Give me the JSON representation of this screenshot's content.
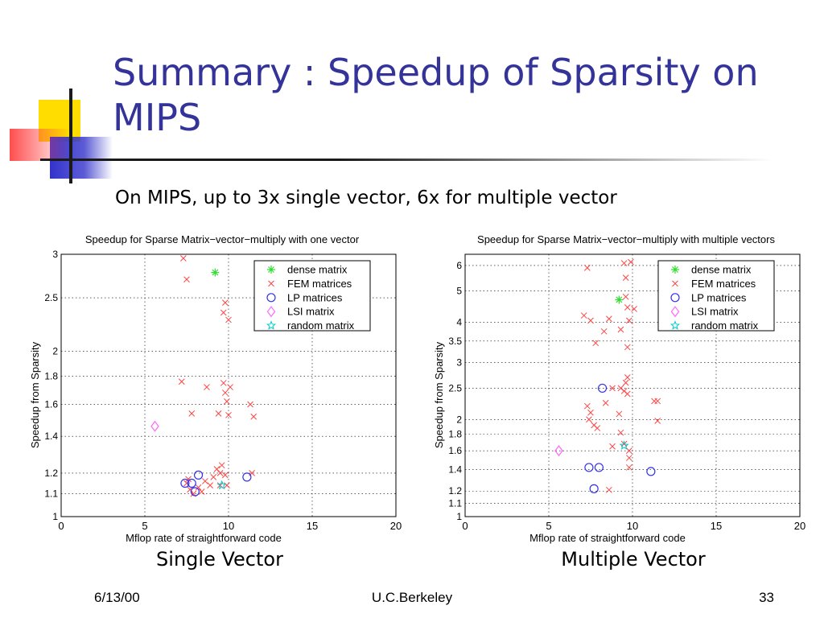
{
  "slide": {
    "title": "Summary : Speedup of Sparsity on MIPS",
    "subtitle": "On MIPS, up to 3x single vector, 6x for multiple vector",
    "captions": [
      "Single Vector",
      "Multiple Vector"
    ],
    "footer": {
      "date": "6/13/00",
      "org": "U.C.Berkeley",
      "page": "33"
    }
  },
  "colors": {
    "title": "#333399",
    "dense": "#33dd33",
    "fem": "#ff4444",
    "lp": "#3333ee",
    "lsi": "#ff66ff",
    "random": "#00cccc"
  },
  "chart_data": [
    {
      "type": "scatter",
      "title": "Speedup for Sparse Matrix−vector−multiply with one vector",
      "xlabel": "Mflop rate of straightforward code",
      "ylabel": "Speedup from Sparsity",
      "xlim": [
        0,
        20
      ],
      "ylim": [
        1,
        3
      ],
      "yscale": "log",
      "xticks": [
        0,
        5,
        10,
        15,
        20
      ],
      "yticks": [
        1,
        1.1,
        1.2,
        1.4,
        1.6,
        1.8,
        2,
        2.5,
        3
      ],
      "grid": true,
      "legend_position": "top-right",
      "series": [
        {
          "name": "dense matrix",
          "marker": "star",
          "points": [
            [
              9.2,
              2.78
            ]
          ]
        },
        {
          "name": "FEM matrices",
          "marker": "x",
          "points": [
            [
              7.3,
              2.95
            ],
            [
              7.5,
              2.7
            ],
            [
              9.8,
              2.45
            ],
            [
              9.7,
              2.35
            ],
            [
              10.0,
              2.28
            ],
            [
              7.2,
              1.76
            ],
            [
              8.7,
              1.72
            ],
            [
              9.7,
              1.75
            ],
            [
              9.8,
              1.68
            ],
            [
              10.1,
              1.72
            ],
            [
              9.9,
              1.62
            ],
            [
              11.3,
              1.6
            ],
            [
              11.5,
              1.52
            ],
            [
              7.8,
              1.54
            ],
            [
              9.4,
              1.54
            ],
            [
              10.0,
              1.53
            ],
            [
              9.3,
              1.22
            ],
            [
              9.6,
              1.24
            ],
            [
              9.5,
              1.2
            ],
            [
              9.8,
              1.19
            ],
            [
              11.4,
              1.2
            ],
            [
              7.5,
              1.15
            ],
            [
              8.2,
              1.13
            ],
            [
              8.6,
              1.16
            ],
            [
              8.9,
              1.14
            ],
            [
              9.5,
              1.14
            ],
            [
              9.9,
              1.14
            ],
            [
              7.7,
              1.12
            ],
            [
              8.4,
              1.11
            ],
            [
              7.9,
              1.1
            ],
            [
              7.6,
              1.17
            ],
            [
              9.1,
              1.18
            ]
          ]
        },
        {
          "name": "LP matrices",
          "marker": "circle",
          "points": [
            [
              7.4,
              1.15
            ],
            [
              7.8,
              1.15
            ],
            [
              8.2,
              1.19
            ],
            [
              8.0,
              1.11
            ],
            [
              11.1,
              1.18
            ]
          ]
        },
        {
          "name": "LSI matrix",
          "marker": "diamond",
          "points": [
            [
              5.6,
              1.46
            ]
          ]
        },
        {
          "name": "random matrix",
          "marker": "pentagram",
          "points": [
            [
              9.6,
              1.14
            ]
          ]
        }
      ]
    },
    {
      "type": "scatter",
      "title": "Speedup for Sparse Matrix−vector−multiply with multiple vectors",
      "xlabel": "Mflop rate of straightforward code",
      "ylabel": "Speedup from Sparsity",
      "xlim": [
        0,
        20
      ],
      "ylim": [
        1,
        6.5
      ],
      "yscale": "log",
      "xticks": [
        0,
        5,
        10,
        15,
        20
      ],
      "yticks": [
        1,
        1.1,
        1.2,
        1.4,
        1.6,
        1.8,
        2,
        2.5,
        3,
        3.5,
        4,
        5,
        6
      ],
      "grid": true,
      "legend_position": "top-right",
      "series": [
        {
          "name": "dense matrix",
          "marker": "star",
          "points": [
            [
              9.2,
              4.7
            ]
          ]
        },
        {
          "name": "FEM matrices",
          "marker": "x",
          "points": [
            [
              7.3,
              5.9
            ],
            [
              9.5,
              6.1
            ],
            [
              9.9,
              6.15
            ],
            [
              9.6,
              5.5
            ],
            [
              9.6,
              4.8
            ],
            [
              9.7,
              4.45
            ],
            [
              10.1,
              4.4
            ],
            [
              7.1,
              4.2
            ],
            [
              7.5,
              4.05
            ],
            [
              8.6,
              4.1
            ],
            [
              8.3,
              3.75
            ],
            [
              9.3,
              3.8
            ],
            [
              9.8,
              4.05
            ],
            [
              7.8,
              3.45
            ],
            [
              9.7,
              3.35
            ],
            [
              9.7,
              2.7
            ],
            [
              9.6,
              2.6
            ],
            [
              8.8,
              2.5
            ],
            [
              9.3,
              2.5
            ],
            [
              9.5,
              2.45
            ],
            [
              9.7,
              2.4
            ],
            [
              7.3,
              2.2
            ],
            [
              7.5,
              2.1
            ],
            [
              8.4,
              2.25
            ],
            [
              11.3,
              2.28
            ],
            [
              11.5,
              2.28
            ],
            [
              7.4,
              2.0
            ],
            [
              9.2,
              2.08
            ],
            [
              11.5,
              1.98
            ],
            [
              7.7,
              1.92
            ],
            [
              7.9,
              1.88
            ],
            [
              9.3,
              1.82
            ],
            [
              8.8,
              1.65
            ],
            [
              9.5,
              1.68
            ],
            [
              9.8,
              1.6
            ],
            [
              9.8,
              1.52
            ],
            [
              9.8,
              1.42
            ],
            [
              8.6,
              1.21
            ]
          ]
        },
        {
          "name": "LP matrices",
          "marker": "circle",
          "points": [
            [
              8.2,
              2.5
            ],
            [
              7.4,
              1.42
            ],
            [
              8.0,
              1.42
            ],
            [
              7.7,
              1.22
            ],
            [
              11.1,
              1.38
            ]
          ]
        },
        {
          "name": "LSI matrix",
          "marker": "diamond",
          "points": [
            [
              5.6,
              1.6
            ]
          ]
        },
        {
          "name": "random matrix",
          "marker": "pentagram",
          "points": [
            [
              9.5,
              1.66
            ]
          ]
        }
      ]
    }
  ]
}
